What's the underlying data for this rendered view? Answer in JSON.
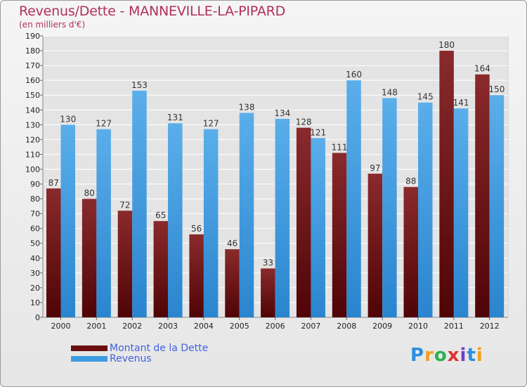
{
  "header": {
    "title": "Revenus/Dette - MANNEVILLE-LA-PIPARD",
    "subtitle": "(en milliers d'€)"
  },
  "logo": {
    "text": "Proxiti",
    "letters": [
      "P",
      "r",
      "o",
      "x",
      "i",
      "t",
      "i"
    ],
    "colors": [
      "#2a8ee0",
      "#f0a020",
      "#2ab050",
      "#e03030",
      "#7040c0",
      "#2a8ee0",
      "#f0a020"
    ]
  },
  "colors": {
    "dette": "#6b0e10",
    "revenus": "#3d9be0",
    "grid": "#ffffff",
    "axis_text": "#222222"
  },
  "chart_data": {
    "type": "bar",
    "title": "Revenus/Dette - MANNEVILLE-LA-PIPARD",
    "subtitle": "(en milliers d'€)",
    "categories": [
      "2000",
      "2001",
      "2002",
      "2003",
      "2004",
      "2005",
      "2006",
      "2007",
      "2008",
      "2009",
      "2010",
      "2011",
      "2012"
    ],
    "series": [
      {
        "name": "Montant de la Dette",
        "values": [
          87,
          80,
          72,
          65,
          56,
          46,
          33,
          128,
          111,
          97,
          88,
          180,
          164
        ]
      },
      {
        "name": "Revenus",
        "values": [
          130,
          127,
          153,
          131,
          127,
          138,
          134,
          121,
          160,
          148,
          145,
          141,
          150
        ]
      }
    ],
    "ylim": [
      0,
      190
    ],
    "yticks": [
      0,
      10,
      20,
      30,
      40,
      50,
      60,
      70,
      80,
      90,
      100,
      110,
      120,
      130,
      140,
      150,
      160,
      170,
      180,
      190
    ],
    "grid": true,
    "legend_position": "bottom-left"
  }
}
